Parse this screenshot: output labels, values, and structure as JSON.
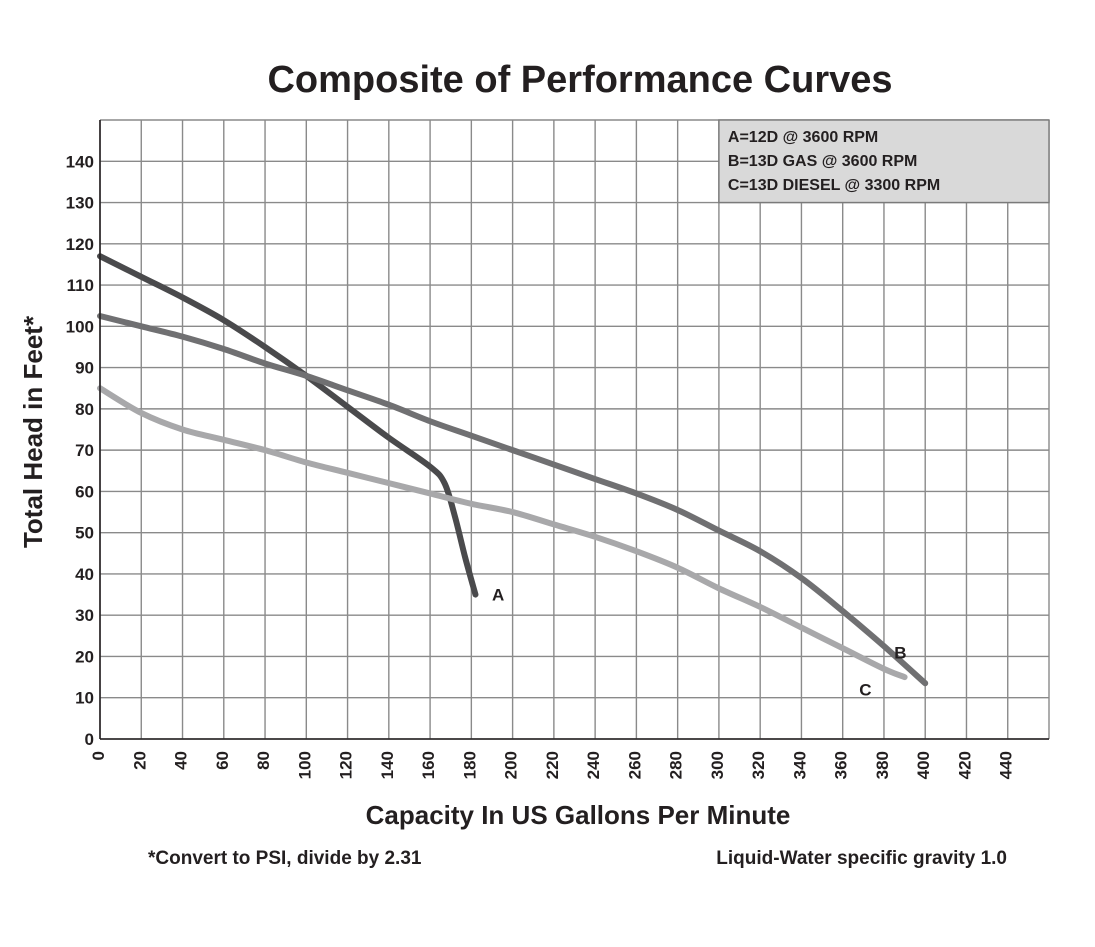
{
  "chart_data": {
    "type": "line",
    "title": "Composite of Performance Curves",
    "xlabel": "Capacity In US Gallons Per Minute",
    "ylabel": "Total Head in Feet*",
    "xlim": [
      0,
      460
    ],
    "ylim": [
      0,
      150
    ],
    "x_ticks": [
      0,
      20,
      40,
      60,
      80,
      100,
      120,
      140,
      160,
      180,
      200,
      220,
      240,
      260,
      280,
      300,
      320,
      340,
      360,
      380,
      400,
      420,
      440
    ],
    "y_ticks": [
      0,
      10,
      20,
      30,
      40,
      50,
      60,
      70,
      80,
      90,
      100,
      110,
      120,
      130,
      140
    ],
    "grid": true,
    "legend_position": "top-right",
    "legend": [
      "A=12D @ 3600 RPM",
      "B=13D GAS @ 3600 RPM",
      "C=13D DIESEL @ 3300 RPM"
    ],
    "series": [
      {
        "name": "A",
        "color": "#4a4a4c",
        "label_at": [
          190,
          35
        ],
        "points": [
          [
            0,
            117
          ],
          [
            20,
            112
          ],
          [
            40,
            107
          ],
          [
            60,
            101.5
          ],
          [
            80,
            95
          ],
          [
            100,
            88
          ],
          [
            120,
            80.5
          ],
          [
            140,
            73
          ],
          [
            160,
            66
          ],
          [
            167,
            62
          ],
          [
            172,
            54
          ],
          [
            177,
            44
          ],
          [
            182,
            35
          ]
        ]
      },
      {
        "name": "B",
        "color": "#707072",
        "label_at": [
          385,
          21
        ],
        "points": [
          [
            0,
            102.5
          ],
          [
            20,
            100
          ],
          [
            40,
            97.5
          ],
          [
            60,
            94.5
          ],
          [
            80,
            91
          ],
          [
            100,
            88
          ],
          [
            120,
            84.5
          ],
          [
            140,
            81
          ],
          [
            160,
            77
          ],
          [
            180,
            73.5
          ],
          [
            200,
            70
          ],
          [
            220,
            66.5
          ],
          [
            240,
            63
          ],
          [
            260,
            59.5
          ],
          [
            280,
            55.5
          ],
          [
            300,
            50.5
          ],
          [
            320,
            45.5
          ],
          [
            340,
            39
          ],
          [
            360,
            31
          ],
          [
            380,
            22.5
          ],
          [
            400,
            13.5
          ]
        ]
      },
      {
        "name": "C",
        "color": "#a8a8aa",
        "label_at": [
          368,
          12
        ],
        "points": [
          [
            0,
            85
          ],
          [
            20,
            79
          ],
          [
            40,
            75
          ],
          [
            60,
            72.5
          ],
          [
            80,
            70
          ],
          [
            100,
            67
          ],
          [
            120,
            64.5
          ],
          [
            140,
            62
          ],
          [
            160,
            59.5
          ],
          [
            180,
            57
          ],
          [
            200,
            55
          ],
          [
            220,
            52
          ],
          [
            240,
            49
          ],
          [
            260,
            45.5
          ],
          [
            280,
            41.5
          ],
          [
            300,
            36.5
          ],
          [
            320,
            32
          ],
          [
            340,
            27
          ],
          [
            360,
            22
          ],
          [
            380,
            17
          ],
          [
            390,
            15
          ]
        ]
      }
    ],
    "footnotes": {
      "left": "*Convert to PSI, divide by 2.31",
      "right": "Liquid-Water specific gravity 1.0"
    }
  }
}
